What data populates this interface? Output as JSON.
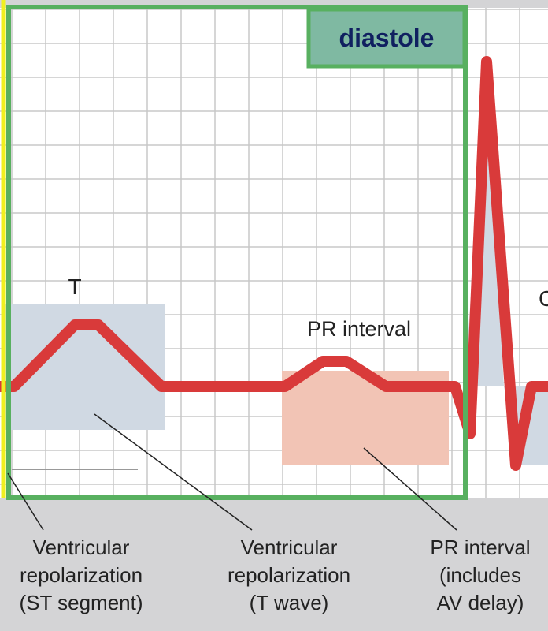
{
  "diastole": "diastole",
  "wave_labels": {
    "t": "T",
    "pr": "PR interval",
    "c": "C"
  },
  "captions": [
    {
      "lines": [
        "Ventricular",
        "repolarization",
        "(ST segment)"
      ]
    },
    {
      "lines": [
        "Ventricular",
        "repolarization",
        "(T wave)"
      ]
    },
    {
      "lines": [
        "PR interval",
        "(includes",
        "AV delay)"
      ]
    }
  ]
}
